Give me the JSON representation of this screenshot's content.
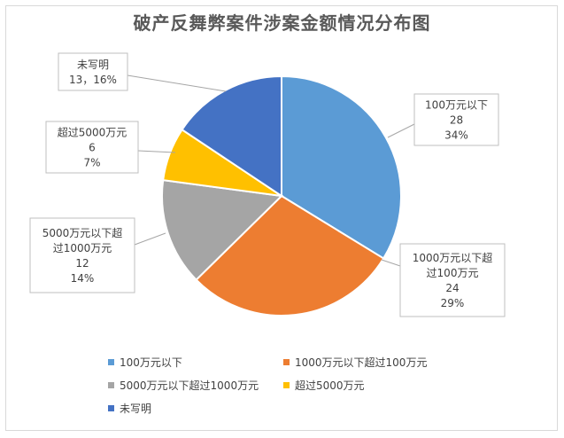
{
  "chart_data": {
    "type": "pie",
    "title": "破产反舞弊案件涉案金额情况分布图",
    "slices": [
      {
        "name": "100万元以下",
        "value": 28,
        "percent": "34%",
        "color": "#5b9bd5",
        "label_lines": [
          "100万元以下",
          "28",
          "34%"
        ]
      },
      {
        "name": "1000万元以下超过100万元",
        "value": 24,
        "percent": "29%",
        "color": "#ed7d31",
        "label_lines": [
          "1000万元以下超",
          "过100万元",
          "24",
          "29%"
        ]
      },
      {
        "name": "5000万元以下超过1000万元",
        "value": 12,
        "percent": "14%",
        "color": "#a5a5a5",
        "label_lines": [
          "5000万元以下超",
          "过1000万元",
          "12",
          "14%"
        ]
      },
      {
        "name": "超过5000万元",
        "value": 6,
        "percent": "7%",
        "color": "#ffc000",
        "label_lines": [
          "超过5000万元",
          "6",
          "7%"
        ]
      },
      {
        "name": "未写明",
        "value": 13,
        "percent": "16%",
        "color": "#4472c4",
        "label_lines": [
          "未写明",
          "13，16%"
        ]
      }
    ],
    "legend": {
      "position": "bottom"
    }
  }
}
